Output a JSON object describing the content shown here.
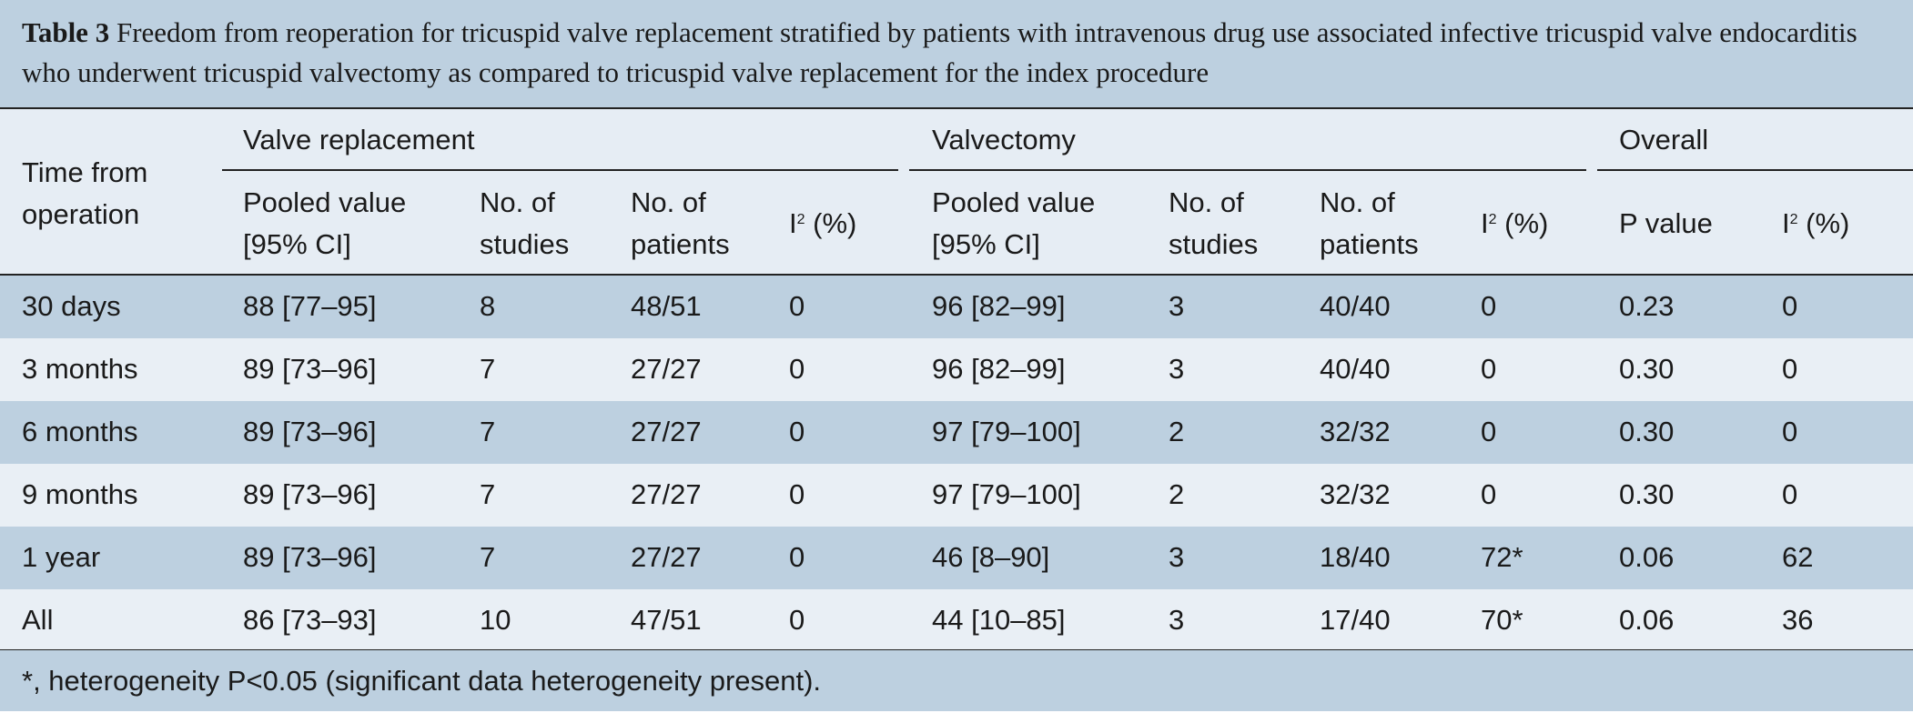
{
  "caption": {
    "label": "Table 3",
    "text": "Freedom from reoperation for tricuspid valve replacement stratified by patients with intravenous drug use associated infective tricuspid valve endocarditis who underwent tricuspid valvectomy as compared to tricuspid valve replacement for the index procedure"
  },
  "headers": {
    "time_from_operation": "Time from operation",
    "groups": {
      "valve_replacement": "Valve replacement",
      "valvectomy": "Valvectomy",
      "overall": "Overall"
    },
    "vr": {
      "pooled_value": "Pooled value [95% CI]",
      "no_studies": "No. of studies",
      "no_patients": "No. of patients",
      "i2_letter": "I",
      "i2_sup": "2",
      "i2_unit": " (%)"
    },
    "vt": {
      "pooled_value": "Pooled value [95% CI]",
      "no_studies": "No. of studies",
      "no_patients": "No. of patients",
      "i2_letter": "I",
      "i2_sup": "2",
      "i2_unit": " (%)"
    },
    "ov": {
      "p_value": "P value",
      "i2_letter": "I",
      "i2_sup": "2",
      "i2_unit": " (%)"
    }
  },
  "rows": [
    {
      "time": "30 days",
      "vr_pooled": "88 [77–95]",
      "vr_studies": "8",
      "vr_patients": "48/51",
      "vr_i2": "0",
      "vt_pooled": "96 [82–99]",
      "vt_studies": "3",
      "vt_patients": "40/40",
      "vt_i2": "0",
      "ov_p": "0.23",
      "ov_i2": "0"
    },
    {
      "time": "3 months",
      "vr_pooled": "89 [73–96]",
      "vr_studies": "7",
      "vr_patients": "27/27",
      "vr_i2": "0",
      "vt_pooled": "96 [82–99]",
      "vt_studies": "3",
      "vt_patients": "40/40",
      "vt_i2": "0",
      "ov_p": "0.30",
      "ov_i2": "0"
    },
    {
      "time": "6 months",
      "vr_pooled": "89 [73–96]",
      "vr_studies": "7",
      "vr_patients": "27/27",
      "vr_i2": "0",
      "vt_pooled": "97 [79–100]",
      "vt_studies": "2",
      "vt_patients": "32/32",
      "vt_i2": "0",
      "ov_p": "0.30",
      "ov_i2": "0"
    },
    {
      "time": "9 months",
      "vr_pooled": "89 [73–96]",
      "vr_studies": "7",
      "vr_patients": "27/27",
      "vr_i2": "0",
      "vt_pooled": "97 [79–100]",
      "vt_studies": "2",
      "vt_patients": "32/32",
      "vt_i2": "0",
      "ov_p": "0.30",
      "ov_i2": "0"
    },
    {
      "time": "1 year",
      "vr_pooled": "89 [73–96]",
      "vr_studies": "7",
      "vr_patients": "27/27",
      "vr_i2": "0",
      "vt_pooled": "46 [8–90]",
      "vt_studies": "3",
      "vt_patients": "18/40",
      "vt_i2": "72*",
      "ov_p": "0.06",
      "ov_i2": "62"
    },
    {
      "time": "All",
      "vr_pooled": "86 [73–93]",
      "vr_studies": "10",
      "vr_patients": "47/51",
      "vr_i2": "0",
      "vt_pooled": "44 [10–85]",
      "vt_studies": "3",
      "vt_patients": "17/40",
      "vt_i2": "70*",
      "ov_p": "0.06",
      "ov_i2": "36"
    }
  ],
  "footnote": "*, heterogeneity P<0.05 (significant data heterogeneity present).",
  "colors": {
    "band_dark": "#bdd0e0",
    "band_light": "#e9eff5",
    "rule": "#222222"
  }
}
